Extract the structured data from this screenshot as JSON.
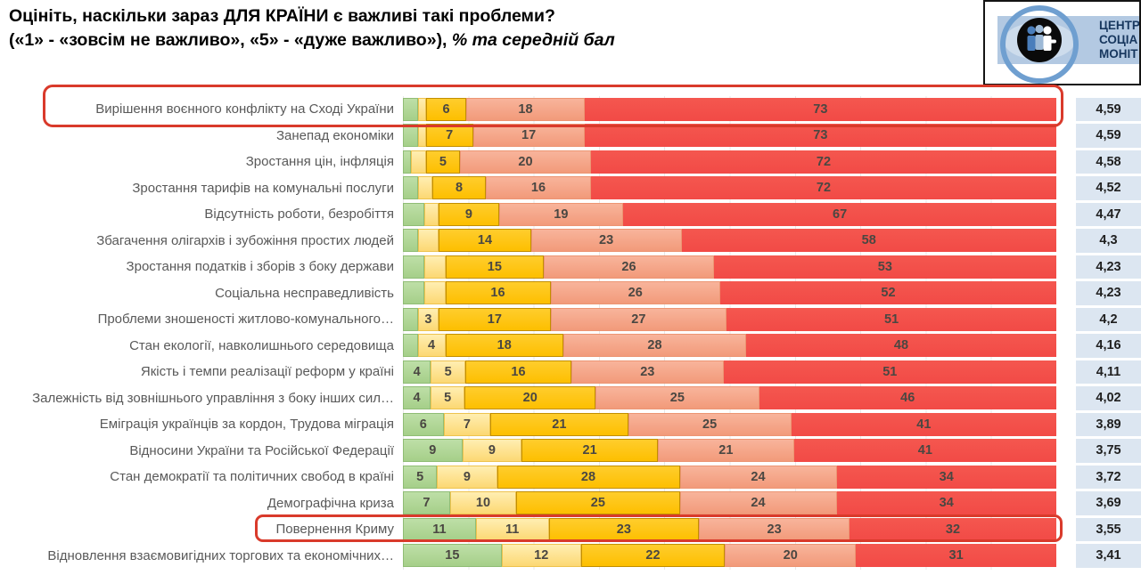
{
  "title": {
    "line1": "Оцініть, наскільки зараз ДЛЯ КРАЇНИ є важливі такі проблеми?",
    "line2_main": "(«1» - «зовсім не важливо», «5» - «дуже важливо»), ",
    "line2_italic": "% та середній бал"
  },
  "logo": {
    "emblem": "three-people-in-eye-logo",
    "text_lines": [
      "ЦЕНТР",
      "СОЦІА",
      "МОНІТ"
    ]
  },
  "colors": {
    "rating1_green": "#a5cf89",
    "rating1_green_light": "#bedfa7",
    "rating2_pale_yellow": "#fcd873",
    "rating2_pale_yellow_light": "#ffeeb2",
    "rating3_gold": "#fdbf00",
    "rating3_gold_light": "#ffcd2d",
    "rating3_gold_border": "#c28e00",
    "rating4_salmon": "#f29a7a",
    "rating4_salmon_light": "#f8b49b",
    "rating5_red": "#f24a46",
    "rating5_red_light": "#f4574f",
    "value_text": "#4a4742",
    "label_text": "#595959",
    "score_text": "#1f1f1f",
    "score_cell_bg": "#dce6f1",
    "highlight_outline": "#d93a2b",
    "grid_line": "#e8e8e8",
    "logo_ring_blue": "#6f9fd0",
    "logo_band_blue": "#b3c9e2",
    "logo_text_navy": "#17375e"
  },
  "chart_data": {
    "type": "bar",
    "variant": "horizontal_stacked_percent",
    "title": "Оцініть, наскільки зараз ДЛЯ КРАЇНИ є важливі такі проблеми?",
    "subtitle": "(«1» - «зовсім не важливо», «5» - «дуже важливо»), % та середній бал",
    "unit": "%",
    "scale_note": "1 = зовсім не важливо, 5 = дуже важливо; справа — середній бал",
    "series_names": [
      "1",
      "2",
      "3",
      "4",
      "5"
    ],
    "legend": "none",
    "xlim": [
      0,
      100
    ],
    "grid": "faint vertical every 10%",
    "rows": [
      {
        "label": "Вирішення воєнного конфлікту на Сході України",
        "values": [
          2,
          1,
          6,
          18,
          73
        ],
        "value_labels": [
          "",
          "",
          "6",
          "18",
          "73"
        ],
        "score": "4,59",
        "highlight": "full"
      },
      {
        "label": "Занепад економіки",
        "values": [
          2,
          1,
          7,
          17,
          73
        ],
        "value_labels": [
          "",
          "",
          "7",
          "17",
          "73"
        ],
        "score": "4,59",
        "highlight": null
      },
      {
        "label": "Зростання цін, інфляція",
        "values": [
          1,
          2,
          5,
          20,
          72
        ],
        "value_labels": [
          "",
          "",
          "5",
          "20",
          "72"
        ],
        "score": "4,58",
        "highlight": null
      },
      {
        "label": "Зростання тарифів на комунальні послуги",
        "values": [
          2,
          2,
          8,
          16,
          72
        ],
        "value_labels": [
          "",
          "",
          "8",
          "16",
          "72"
        ],
        "score": "4,52",
        "highlight": null
      },
      {
        "label": "Відсутність роботи, безробіття",
        "values": [
          3,
          2,
          9,
          19,
          67
        ],
        "value_labels": [
          "",
          "",
          "9",
          "19",
          "67"
        ],
        "score": "4,47",
        "highlight": null
      },
      {
        "label": "Збагачення олігархів і зубожіння простих людей",
        "values": [
          2,
          3,
          14,
          23,
          58
        ],
        "value_labels": [
          "",
          "",
          "14",
          "23",
          "58"
        ],
        "score": "4,3",
        "highlight": null
      },
      {
        "label": "Зростання податків і зборів з боку держави",
        "values": [
          3,
          3,
          15,
          26,
          53
        ],
        "value_labels": [
          "",
          "",
          "15",
          "26",
          "53"
        ],
        "score": "4,23",
        "highlight": null
      },
      {
        "label": "Соціальна несправедливість",
        "values": [
          3,
          3,
          16,
          26,
          52
        ],
        "value_labels": [
          "",
          "",
          "16",
          "26",
          "52"
        ],
        "score": "4,23",
        "highlight": null
      },
      {
        "label": "Проблеми зношеності житлово-комунального…",
        "values": [
          2,
          3,
          17,
          27,
          51
        ],
        "value_labels": [
          "",
          "3",
          "17",
          "27",
          "51"
        ],
        "score": "4,2",
        "highlight": null
      },
      {
        "label": "Стан екології, навколишнього середовища",
        "values": [
          2,
          4,
          18,
          28,
          48
        ],
        "value_labels": [
          "",
          "4",
          "18",
          "28",
          "48"
        ],
        "score": "4,16",
        "highlight": null
      },
      {
        "label": "Якість і темпи реалізації реформ у країні",
        "values": [
          4,
          5,
          16,
          23,
          51
        ],
        "value_labels": [
          "4",
          "5",
          "16",
          "23",
          "51"
        ],
        "score": "4,11",
        "highlight": null
      },
      {
        "label": "Залежність від зовнішнього управління з боку інших сил…",
        "values": [
          4,
          5,
          20,
          25,
          46
        ],
        "value_labels": [
          "4",
          "5",
          "20",
          "25",
          "46"
        ],
        "score": "4,02",
        "highlight": null
      },
      {
        "label": "Еміграція українців за кордон, Трудова міграція",
        "values": [
          6,
          7,
          21,
          25,
          41
        ],
        "value_labels": [
          "6",
          "7",
          "21",
          "25",
          "41"
        ],
        "score": "3,89",
        "highlight": null
      },
      {
        "label": "Відносини України та Російської Федерації",
        "values": [
          9,
          9,
          21,
          21,
          41
        ],
        "value_labels": [
          "9",
          "9",
          "21",
          "21",
          "41"
        ],
        "score": "3,75",
        "highlight": null
      },
      {
        "label": "Стан демократії та політичних свобод в країні",
        "values": [
          5,
          9,
          28,
          24,
          34
        ],
        "value_labels": [
          "5",
          "9",
          "28",
          "24",
          "34"
        ],
        "score": "3,72",
        "highlight": null
      },
      {
        "label": "Демографічна криза",
        "values": [
          7,
          10,
          25,
          24,
          34
        ],
        "value_labels": [
          "7",
          "10",
          "25",
          "24",
          "34"
        ],
        "score": "3,69",
        "highlight": null
      },
      {
        "label": "Повернення Криму",
        "values": [
          11,
          11,
          23,
          23,
          32
        ],
        "value_labels": [
          "11",
          "11",
          "23",
          "23",
          "32"
        ],
        "score": "3,55",
        "highlight": "bar"
      },
      {
        "label": "Відновлення взаємовигідних торгових та економічних…",
        "values": [
          15,
          12,
          22,
          20,
          31
        ],
        "value_labels": [
          "15",
          "12",
          "22",
          "20",
          "31"
        ],
        "score": "3,41",
        "highlight": null
      }
    ]
  }
}
